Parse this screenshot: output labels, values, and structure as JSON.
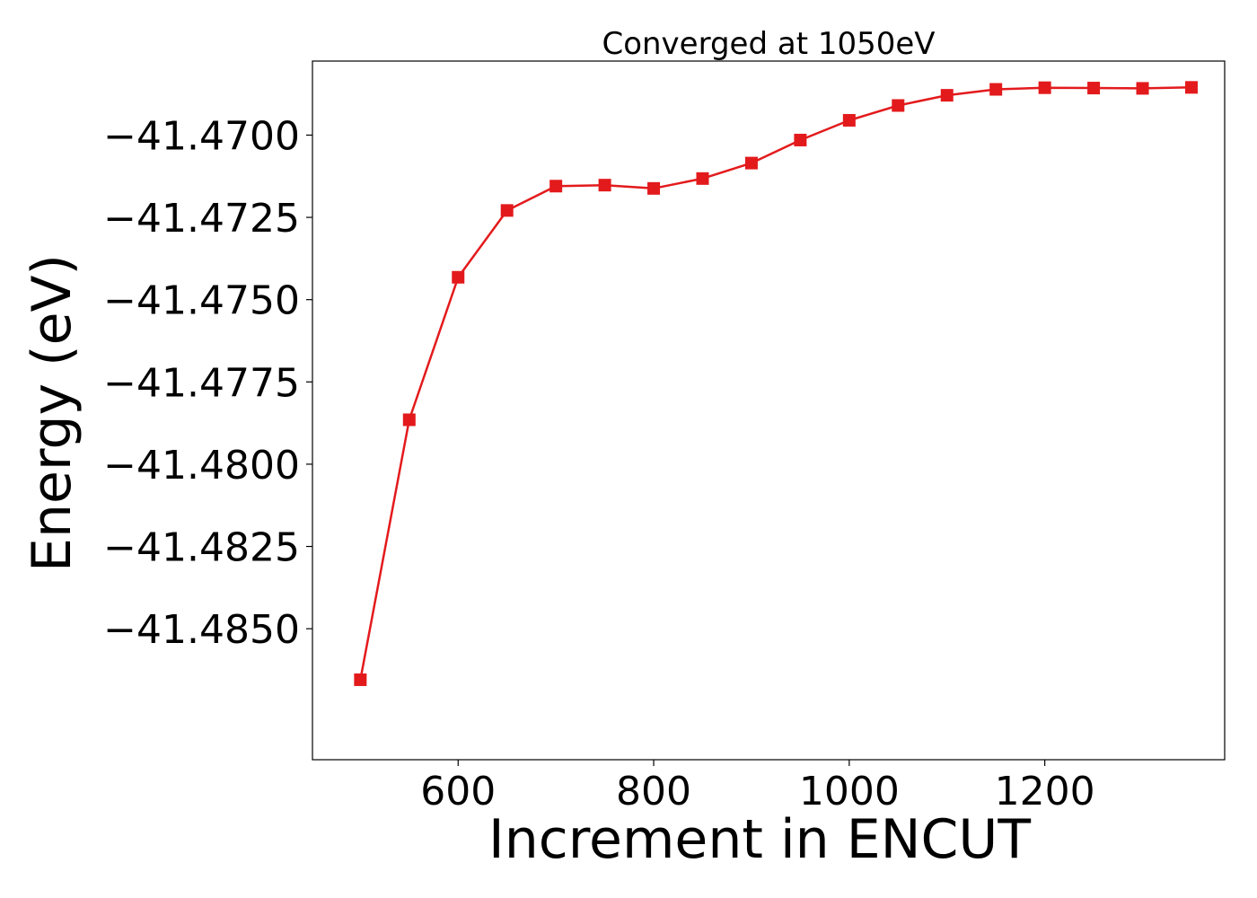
{
  "chart_data": {
    "type": "line",
    "title": "Converged at 1050eV",
    "xlabel": "Increment in ENCUT",
    "ylabel": "Energy (eV)",
    "x": [
      500,
      550,
      600,
      650,
      700,
      750,
      800,
      850,
      900,
      950,
      1000,
      1050,
      1100,
      1150,
      1200,
      1250,
      1300,
      1350
    ],
    "series": [
      {
        "marker": "square",
        "color": "#e31a1c",
        "values": [
          -41.48655,
          -41.47865,
          -41.47432,
          -41.47229,
          -41.47155,
          -41.47152,
          -41.47162,
          -41.47132,
          -41.47085,
          -41.47015,
          -41.46955,
          -41.4691,
          -41.46879,
          -41.46861,
          -41.46856,
          -41.46857,
          -41.46858,
          -41.46855
        ]
      }
    ],
    "xlim": [
      451,
      1384
    ],
    "ylim": [
      -41.48898,
      -41.46775
    ],
    "xticks": [
      600,
      800,
      1000,
      1200
    ],
    "xtick_labels": [
      "600",
      "800",
      "1000",
      "1200"
    ],
    "yticks": [
      -41.47,
      -41.4725,
      -41.475,
      -41.4775,
      -41.48,
      -41.4825,
      -41.485
    ],
    "ytick_labels": [
      "−41.4700",
      "−41.4725",
      "−41.4750",
      "−41.4775",
      "−41.4800",
      "−41.4825",
      "−41.4850"
    ],
    "grid": false,
    "legend": "none"
  }
}
